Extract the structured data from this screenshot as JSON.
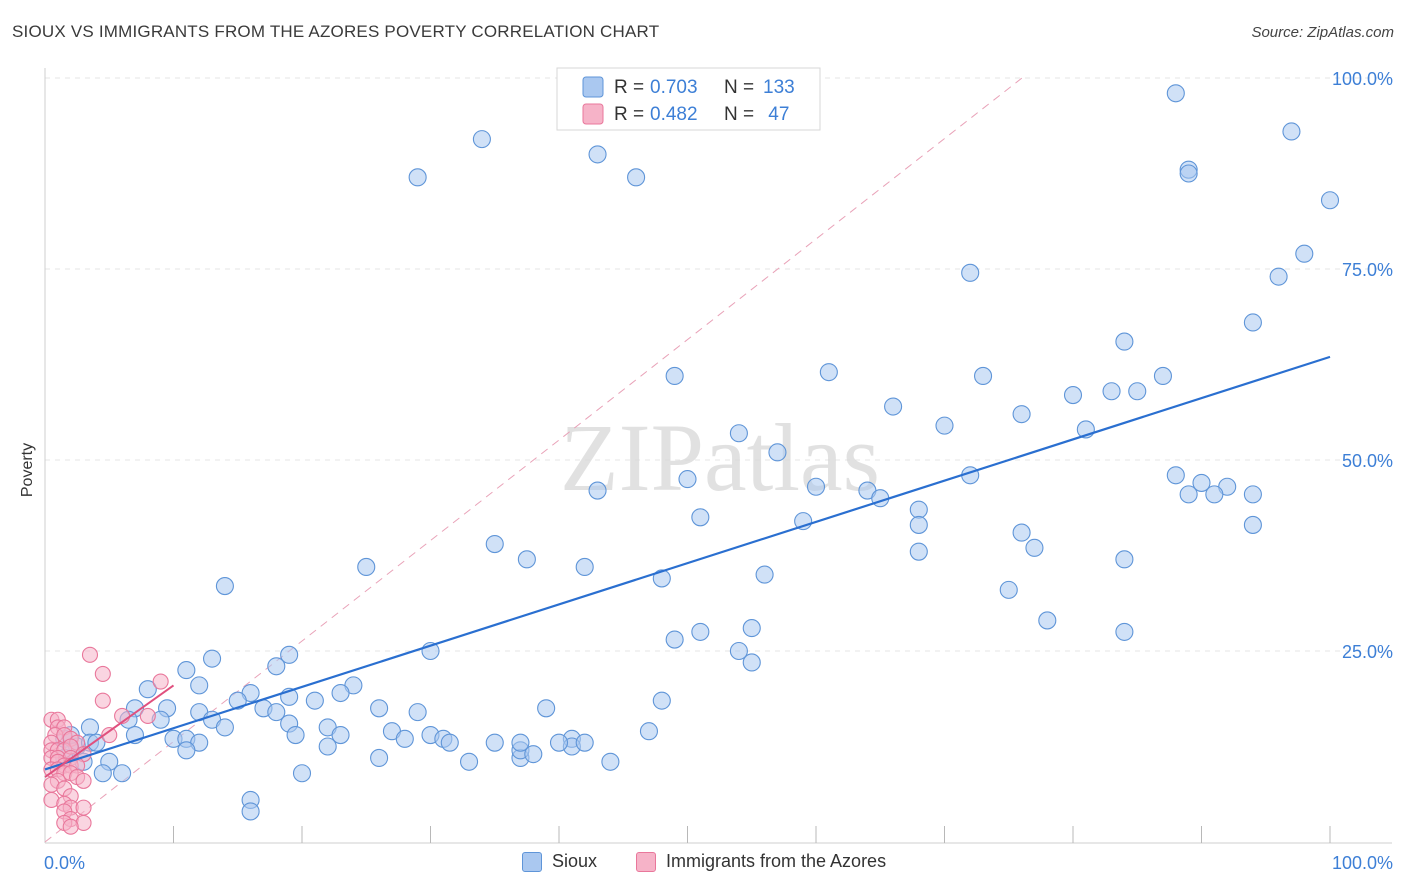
{
  "title": "SIOUX VS IMMIGRANTS FROM THE AZORES POVERTY CORRELATION CHART",
  "source": "Source: ZipAtlas.com",
  "watermark": "ZIPatlas",
  "colors": {
    "sioux_fill": "#aac8f0",
    "sioux_stroke": "#5f95d8",
    "sioux_line": "#2a6fd0",
    "azores_fill": "#f6b3c8",
    "azores_stroke": "#e9779b",
    "azores_line": "#e0507e",
    "axis_text": "#3d7fd6",
    "grid": "#e4e4e4"
  },
  "legend": {
    "rows": [
      {
        "r_label": "R = ",
        "r_value": "0.703",
        "n_label": "N = ",
        "n_value": "133"
      },
      {
        "r_label": "R = ",
        "r_value": "0.482",
        "n_label": "N = ",
        "n_value": " 47"
      }
    ]
  },
  "bottom_legend": [
    "Sioux",
    "Immigrants from the Azores"
  ],
  "chart_data": {
    "type": "scatter",
    "title": "SIOUX VS IMMIGRANTS FROM THE AZORES POVERTY CORRELATION CHART",
    "xlabel": "",
    "ylabel": "Poverty",
    "xlim": [
      0,
      100
    ],
    "ylim": [
      0,
      100
    ],
    "x_tick_labels": [
      "0.0%",
      "100.0%"
    ],
    "y_tick_labels": [
      "25.0%",
      "50.0%",
      "75.0%",
      "100.0%"
    ],
    "y_ticks": [
      25,
      50,
      75,
      100
    ],
    "grid": true,
    "legend_position": "top-center",
    "series": [
      {
        "name": "Sioux",
        "R": 0.703,
        "N": 133,
        "trend": {
          "x": [
            0,
            100
          ],
          "y": [
            9.5,
            63.5
          ]
        },
        "points": [
          [
            29,
            87
          ],
          [
            34,
            92
          ],
          [
            43,
            90
          ],
          [
            46,
            87
          ],
          [
            88,
            98
          ],
          [
            97,
            93
          ],
          [
            89,
            88
          ],
          [
            89,
            87.5
          ],
          [
            100,
            84
          ],
          [
            98,
            77
          ],
          [
            96,
            74
          ],
          [
            72,
            74.5
          ],
          [
            94,
            68
          ],
          [
            84,
            65.5
          ],
          [
            61,
            61.5
          ],
          [
            49,
            61
          ],
          [
            73,
            61
          ],
          [
            87,
            61
          ],
          [
            83,
            59
          ],
          [
            85,
            59
          ],
          [
            80,
            58.5
          ],
          [
            66,
            57
          ],
          [
            76,
            56
          ],
          [
            70,
            54.5
          ],
          [
            81,
            54
          ],
          [
            54,
            53.5
          ],
          [
            57,
            51
          ],
          [
            88,
            48
          ],
          [
            72,
            48
          ],
          [
            50,
            47.5
          ],
          [
            60,
            46.5
          ],
          [
            43,
            46
          ],
          [
            64,
            46
          ],
          [
            90,
            47
          ],
          [
            92,
            46.5
          ],
          [
            65,
            45
          ],
          [
            89,
            45.5
          ],
          [
            91,
            45.5
          ],
          [
            94,
            45.5
          ],
          [
            68,
            43.5
          ],
          [
            51,
            42.5
          ],
          [
            59,
            42
          ],
          [
            68,
            41.5
          ],
          [
            76,
            40.5
          ],
          [
            94,
            41.5
          ],
          [
            35,
            39
          ],
          [
            77,
            38.5
          ],
          [
            68,
            38
          ],
          [
            84,
            37
          ],
          [
            37.5,
            37
          ],
          [
            42,
            36
          ],
          [
            25,
            36
          ],
          [
            56,
            35
          ],
          [
            48,
            34.5
          ],
          [
            75,
            33
          ],
          [
            14,
            33.5
          ],
          [
            78,
            29
          ],
          [
            55,
            28
          ],
          [
            84,
            27.5
          ],
          [
            51,
            27.5
          ],
          [
            49,
            26.5
          ],
          [
            54,
            25
          ],
          [
            19,
            24.5
          ],
          [
            30,
            25
          ],
          [
            13,
            24
          ],
          [
            55,
            23.5
          ],
          [
            11,
            22.5
          ],
          [
            18,
            23
          ],
          [
            12,
            20.5
          ],
          [
            16,
            19.5
          ],
          [
            24,
            20.5
          ],
          [
            8,
            20
          ],
          [
            15,
            18.5
          ],
          [
            19,
            19
          ],
          [
            23,
            19.5
          ],
          [
            9.5,
            17.5
          ],
          [
            17,
            17.5
          ],
          [
            18,
            17
          ],
          [
            21,
            18.5
          ],
          [
            7,
            17.5
          ],
          [
            26,
            17.5
          ],
          [
            39,
            17.5
          ],
          [
            29,
            17
          ],
          [
            48,
            18.5
          ],
          [
            12,
            17
          ],
          [
            13,
            16
          ],
          [
            6.5,
            16
          ],
          [
            9,
            16
          ],
          [
            3.5,
            15
          ],
          [
            14,
            15
          ],
          [
            19,
            15.5
          ],
          [
            22,
            15
          ],
          [
            27,
            14.5
          ],
          [
            30,
            14
          ],
          [
            31,
            13.5
          ],
          [
            7,
            14
          ],
          [
            10,
            13.5
          ],
          [
            11,
            13.5
          ],
          [
            12,
            13
          ],
          [
            23,
            14
          ],
          [
            28,
            13.5
          ],
          [
            35,
            13
          ],
          [
            41,
            13.5
          ],
          [
            41,
            12.5
          ],
          [
            42,
            13
          ],
          [
            37,
            11
          ],
          [
            2.5,
            12.5
          ],
          [
            3.5,
            13
          ],
          [
            1.5,
            13.5
          ],
          [
            4,
            13
          ],
          [
            22,
            12.5
          ],
          [
            33,
            10.5
          ],
          [
            44,
            10.5
          ],
          [
            3,
            10.5
          ],
          [
            5,
            10.5
          ],
          [
            4.5,
            9
          ],
          [
            6,
            9
          ],
          [
            20,
            9
          ],
          [
            16,
            5.5
          ],
          [
            16,
            4
          ],
          [
            2,
            12
          ],
          [
            1.5,
            11
          ],
          [
            2,
            14
          ],
          [
            26,
            11
          ],
          [
            37,
            12
          ],
          [
            40,
            13
          ],
          [
            37,
            13
          ],
          [
            19.5,
            14
          ],
          [
            47,
            14.5
          ],
          [
            11,
            12
          ],
          [
            31.5,
            13
          ],
          [
            38,
            11.5
          ]
        ]
      },
      {
        "name": "Immigrants from the Azores",
        "R": 0.482,
        "N": 47,
        "trend": {
          "x": [
            0,
            10
          ],
          "y": [
            8.5,
            20.5
          ]
        },
        "points": [
          [
            3.5,
            24.5
          ],
          [
            4.5,
            22
          ],
          [
            9,
            21
          ],
          [
            4.5,
            18.5
          ],
          [
            6,
            16.5
          ],
          [
            8,
            16.5
          ],
          [
            0.5,
            16
          ],
          [
            1,
            16
          ],
          [
            1,
            15
          ],
          [
            1.5,
            15
          ],
          [
            0.8,
            14
          ],
          [
            1.5,
            14
          ],
          [
            2,
            13.5
          ],
          [
            5,
            14
          ],
          [
            2.5,
            13
          ],
          [
            0.5,
            13
          ],
          [
            0.5,
            12
          ],
          [
            1,
            12
          ],
          [
            1.5,
            12
          ],
          [
            2,
            12.5
          ],
          [
            3,
            11.5
          ],
          [
            0.5,
            11
          ],
          [
            1,
            11
          ],
          [
            2,
            11
          ],
          [
            1,
            10.5
          ],
          [
            1.5,
            10
          ],
          [
            2,
            10
          ],
          [
            2.5,
            10
          ],
          [
            0.5,
            9.5
          ],
          [
            1,
            9.5
          ],
          [
            1.5,
            9
          ],
          [
            2,
            9
          ],
          [
            2.5,
            8.5
          ],
          [
            1,
            8
          ],
          [
            3,
            8
          ],
          [
            0.5,
            7.5
          ],
          [
            1.5,
            7
          ],
          [
            2,
            6
          ],
          [
            0.5,
            5.5
          ],
          [
            1.5,
            5
          ],
          [
            2,
            4.5
          ],
          [
            3,
            4.5
          ],
          [
            1.5,
            4
          ],
          [
            2,
            3
          ],
          [
            1.5,
            2.5
          ],
          [
            3,
            2.5
          ],
          [
            2,
            2
          ]
        ]
      }
    ]
  }
}
